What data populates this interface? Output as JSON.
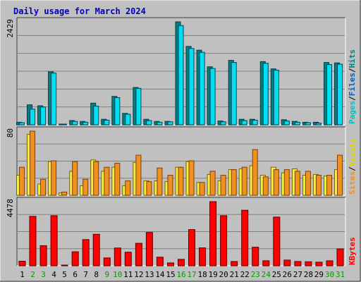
{
  "title": "Daily usage for March 2024",
  "colors": {
    "background": "#c0c0c0",
    "plot": "#c0c0c0",
    "grid": "#808080",
    "title": "#0000c0",
    "hits": "#00c0c0",
    "hits_dark": "#008080",
    "files": "#00e0f0",
    "files_dark": "#0078a0",
    "sites": "#f0f040",
    "visits": "#f09020",
    "kbytes": "#ff0000",
    "weekday": "#000000",
    "weekend": "#00a000"
  },
  "legend": {
    "top": {
      "pages": "Pages",
      "sep1": "/",
      "files": "Files",
      "sep2": "/",
      "hits": "Hits"
    },
    "middle": {
      "sites": "Sites",
      "sep": "/",
      "visits": "Visits"
    },
    "bottom": {
      "kbytes": "KBytes"
    }
  },
  "chart_data": {
    "type": "bar",
    "days": [
      "1",
      "2",
      "3",
      "4",
      "5",
      "6",
      "7",
      "8",
      "9",
      "10",
      "11",
      "12",
      "13",
      "14",
      "15",
      "16",
      "17",
      "18",
      "19",
      "20",
      "21",
      "22",
      "23",
      "24",
      "25",
      "26",
      "27",
      "28",
      "29",
      "30",
      "31"
    ],
    "weekend_days": [
      "2",
      "3",
      "9",
      "10",
      "16",
      "17",
      "23",
      "24",
      "30",
      "31"
    ],
    "panels": [
      {
        "name": "hits-files",
        "ymax_label": "2429",
        "ylim": [
          0,
          2429
        ],
        "series": [
          {
            "name": "Hits",
            "values": [
              60,
              470,
              450,
              1250,
              15,
              100,
              80,
              510,
              130,
              670,
              270,
              880,
              130,
              80,
              80,
              2429,
              1850,
              1760,
              1370,
              90,
              1520,
              130,
              130,
              1490,
              1320,
              120,
              80,
              60,
              60,
              1470,
              1460
            ]
          },
          {
            "name": "Files",
            "values": [
              50,
              370,
              420,
              1220,
              10,
              80,
              60,
              440,
              110,
              640,
              250,
              860,
              100,
              60,
              70,
              2340,
              1800,
              1710,
              1330,
              70,
              1470,
              100,
              110,
              1450,
              1290,
              90,
              60,
              50,
              40,
              1420,
              1430
            ]
          }
        ]
      },
      {
        "name": "sites-visits",
        "ymax_label": "80",
        "ylim": [
          0,
          80
        ],
        "series": [
          {
            "name": "Sites",
            "values": [
              25,
              76,
              14,
              42,
              3,
              30,
              12,
              44,
              30,
              35,
              12,
              41,
              18,
              18,
              17,
              35,
              42,
              16,
              26,
              18,
              32,
              33,
              37,
              25,
              35,
              28,
              33,
              25,
              26,
              24,
              32
            ]
          },
          {
            "name": "Visits",
            "values": [
              35,
              80,
              20,
              43,
              4,
              42,
              20,
              42,
              35,
              40,
              18,
              50,
              17,
              34,
              25,
              35,
              43,
              16,
              30,
              25,
              32,
              35,
              57,
              23,
              32,
              32,
              30,
              30,
              25,
              25,
              50
            ]
          }
        ]
      },
      {
        "name": "kbytes",
        "ymax_label": "4478",
        "ylim": [
          0,
          4478
        ],
        "series": [
          {
            "name": "KBytes",
            "values": [
              320,
              3450,
              1400,
              3500,
              25,
              980,
              1830,
              2200,
              550,
              1240,
              950,
              1570,
              2330,
              600,
              200,
              450,
              2530,
              1250,
              4478,
              3500,
              300,
              3880,
              1300,
              350,
              3400,
              400,
              300,
              280,
              250,
              350,
              1180
            ]
          }
        ]
      }
    ]
  }
}
